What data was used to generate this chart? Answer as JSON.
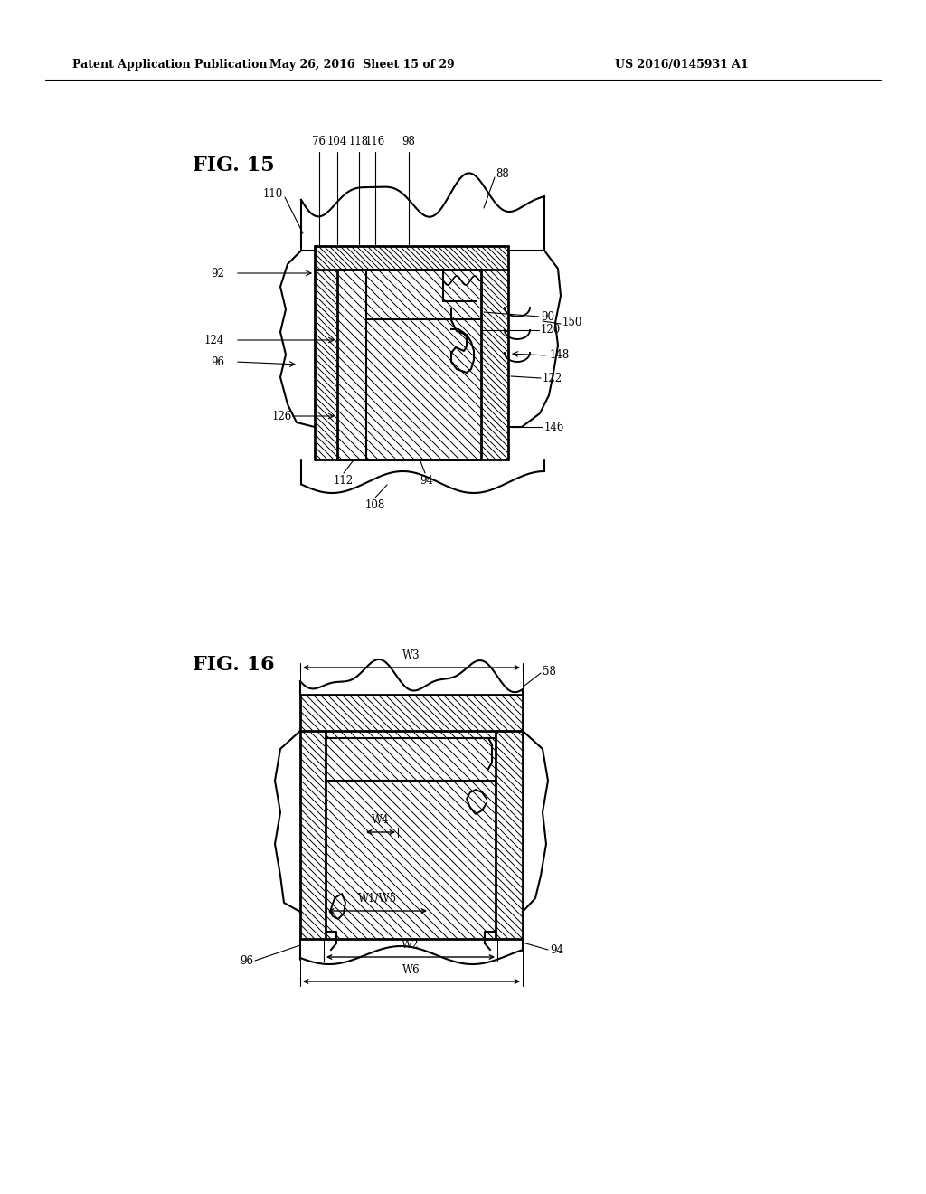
{
  "bg_color": "#ffffff",
  "header_left": "Patent Application Publication",
  "header_mid": "May 26, 2016  Sheet 15 of 29",
  "header_right": "US 2016/0145931 A1",
  "fig15_label": "FIG. 15",
  "fig16_label": "FIG. 16"
}
